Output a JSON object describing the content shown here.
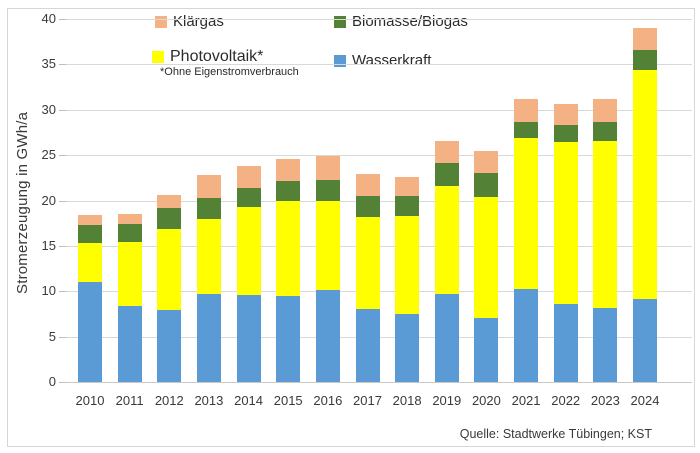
{
  "chart_data": {
    "type": "bar",
    "stacked": true,
    "title": "",
    "xlabel": "",
    "ylabel": "Stromerzeugung in GWh/a",
    "ylim": [
      0,
      40
    ],
    "ytick_step": 5,
    "grid": true,
    "legend_position": "top",
    "categories": [
      "2010",
      "2011",
      "2012",
      "2013",
      "2014",
      "2015",
      "2016",
      "2017",
      "2018",
      "2019",
      "2020",
      "2021",
      "2022",
      "2023",
      "2024"
    ],
    "series": [
      {
        "name": "Wasserkraft",
        "color": "#5B9BD5",
        "values": [
          11.0,
          8.4,
          7.9,
          9.7,
          9.6,
          9.5,
          10.1,
          8.0,
          7.5,
          9.7,
          7.0,
          10.2,
          8.6,
          8.1,
          9.2
        ]
      },
      {
        "name": "Photovoltaik*",
        "color": "#FFFF00",
        "values": [
          4.3,
          7.0,
          9.0,
          8.3,
          9.7,
          10.4,
          9.8,
          10.2,
          10.8,
          11.9,
          13.4,
          16.7,
          17.8,
          18.5,
          25.2
        ]
      },
      {
        "name": "Biomasse/Biogas",
        "color": "#538135",
        "values": [
          2.0,
          2.0,
          2.3,
          2.3,
          2.1,
          2.3,
          2.4,
          2.3,
          2.2,
          2.5,
          2.6,
          1.8,
          1.9,
          2.0,
          2.2
        ]
      },
      {
        "name": "Klärgas",
        "color": "#F4B183",
        "values": [
          1.1,
          1.1,
          1.4,
          2.5,
          2.4,
          2.4,
          2.6,
          2.4,
          2.1,
          2.5,
          2.4,
          2.5,
          2.3,
          2.6,
          2.4
        ]
      }
    ],
    "totals": [
      18.4,
      18.5,
      20.6,
      22.8,
      23.8,
      24.6,
      24.9,
      22.9,
      22.6,
      26.6,
      25.4,
      31.2,
      30.6,
      31.2,
      39.0
    ]
  },
  "legend": {
    "items": [
      {
        "label": "Klärgas",
        "color": "#F4B183"
      },
      {
        "label": "Biomasse/Biogas",
        "color": "#538135"
      },
      {
        "label": "Photovoltaik*",
        "color": "#FFFF00",
        "footnote": "*Ohne Eigenstromverbrauch"
      },
      {
        "label": "Wasserkraft",
        "color": "#5B9BD5"
      }
    ]
  },
  "footer": {
    "source": "Quelle: Stadtwerke Tübingen; KST"
  },
  "colors": {
    "gridline": "#D9D9D9",
    "text": "#3A3A3A",
    "background": "#FFFFFF"
  }
}
